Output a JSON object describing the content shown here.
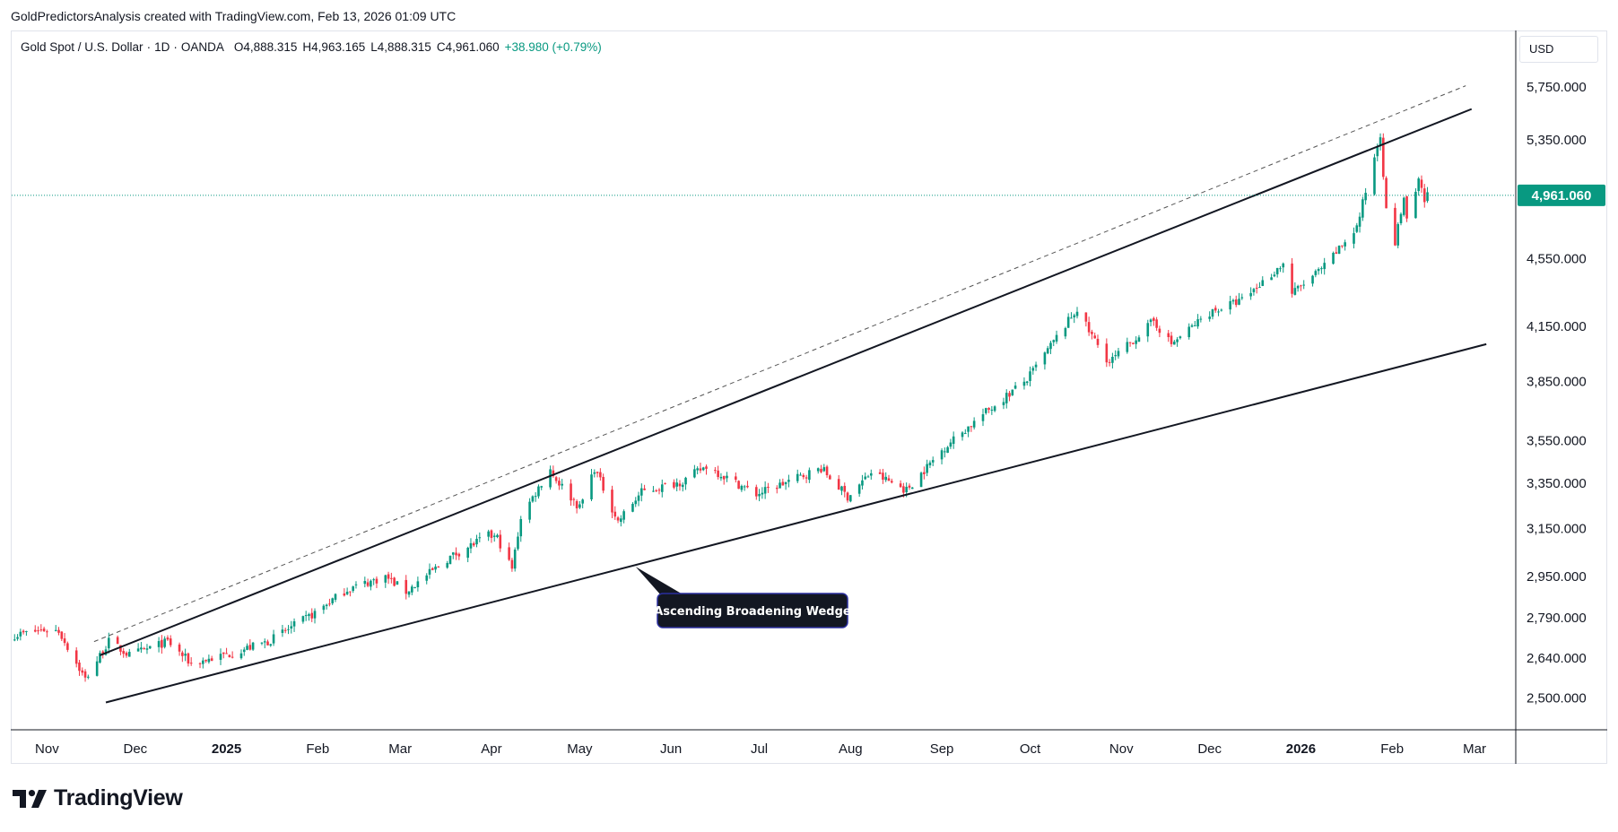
{
  "header": {
    "caption": "GoldPredictorsAnalysis created with TradingView.com, Feb 13, 2026 01:09 UTC"
  },
  "symbol": {
    "name": "Gold Spot / U.S. Dollar",
    "interval": "1D",
    "exchange": "OANDA",
    "open": "O4,888.315",
    "high": "H4,963.165",
    "low": "L4,888.315",
    "close": "C4,961.060",
    "change": "+38.980 (+0.79%)"
  },
  "currency_button": "USD",
  "brand": "TradingView",
  "colors": {
    "up": "#089981",
    "down": "#f23645",
    "price_label": "#089981",
    "annotation": "#131722"
  },
  "chart_data": {
    "type": "candlestick",
    "title": "",
    "price_axis": {
      "ticks": [
        "5,750.000",
        "5,350.000",
        "4,550.000",
        "4,150.000",
        "3,850.000",
        "3,550.000",
        "3,350.000",
        "3,150.000",
        "2,950.000",
        "2,790.000",
        "2,640.000",
        "2,500.000"
      ],
      "scale": "log",
      "range": [
        2400,
        5900
      ]
    },
    "time_axis": {
      "ticks": [
        "Nov",
        "Dec",
        "2025",
        "Feb",
        "Mar",
        "Apr",
        "May",
        "Jun",
        "Jul",
        "Aug",
        "Sep",
        "Oct",
        "Nov",
        "Dec",
        "2026",
        "Feb",
        "Mar"
      ],
      "bold": [
        "2025",
        "2026"
      ],
      "range": [
        "2024-10-20",
        "2026-03-15"
      ]
    },
    "last_price": {
      "value": 4961.06,
      "label": "4,961.060"
    },
    "close_path": [
      [
        "2024-10-20",
        2722
      ],
      [
        "2024-10-31",
        2744
      ],
      [
        "2024-11-05",
        2740
      ],
      [
        "2024-11-14",
        2565
      ],
      [
        "2024-11-22",
        2700
      ],
      [
        "2024-11-29",
        2650
      ],
      [
        "2024-12-12",
        2700
      ],
      [
        "2024-12-20",
        2620
      ],
      [
        "2025-01-02",
        2655
      ],
      [
        "2025-01-15",
        2700
      ],
      [
        "2025-01-30",
        2800
      ],
      [
        "2025-02-11",
        2900
      ],
      [
        "2025-02-24",
        2950
      ],
      [
        "2025-03-03",
        2890
      ],
      [
        "2025-03-18",
        3030
      ],
      [
        "2025-03-31",
        3120
      ],
      [
        "2025-04-03",
        3110
      ],
      [
        "2025-04-08",
        2980
      ],
      [
        "2025-04-11",
        3200
      ],
      [
        "2025-04-21",
        3420
      ],
      [
        "2025-04-22",
        3385
      ],
      [
        "2025-05-01",
        3240
      ],
      [
        "2025-05-06",
        3420
      ],
      [
        "2025-05-14",
        3180
      ],
      [
        "2025-05-22",
        3310
      ],
      [
        "2025-06-05",
        3360
      ],
      [
        "2025-06-13",
        3430
      ],
      [
        "2025-06-30",
        3300
      ],
      [
        "2025-07-22",
        3420
      ],
      [
        "2025-07-31",
        3290
      ],
      [
        "2025-08-08",
        3400
      ],
      [
        "2025-08-20",
        3320
      ],
      [
        "2025-09-02",
        3520
      ],
      [
        "2025-09-15",
        3680
      ],
      [
        "2025-09-30",
        3860
      ],
      [
        "2025-10-08",
        4040
      ],
      [
        "2025-10-17",
        4250
      ],
      [
        "2025-10-21",
        4120
      ],
      [
        "2025-10-28",
        3950
      ],
      [
        "2025-11-12",
        4180
      ],
      [
        "2025-11-18",
        4050
      ],
      [
        "2025-12-01",
        4230
      ],
      [
        "2025-12-12",
        4300
      ],
      [
        "2025-12-26",
        4520
      ],
      [
        "2025-12-29",
        4340
      ],
      [
        "2026-01-09",
        4500
      ],
      [
        "2026-01-20",
        4750
      ],
      [
        "2026-01-28",
        5400
      ],
      [
        "2026-01-30",
        4850
      ],
      [
        "2026-02-02",
        4650
      ],
      [
        "2026-02-05",
        4950
      ],
      [
        "2026-02-06",
        4780
      ],
      [
        "2026-02-10",
        5050
      ],
      [
        "2026-02-12",
        4920
      ],
      [
        "2026-02-13",
        4961
      ]
    ],
    "trendlines": [
      {
        "name": "upper",
        "from": [
          "2024-11-19",
          2650
        ],
        "to": [
          "2026-02-28",
          5580
        ],
        "style": "solid"
      },
      {
        "name": "upper-parallel",
        "from": [
          "2024-11-17",
          2700
        ],
        "to": [
          "2026-02-26",
          5760
        ],
        "style": "dashed"
      },
      {
        "name": "lower",
        "from": [
          "2024-11-21",
          2485
        ],
        "to": [
          "2026-03-05",
          4050
        ],
        "style": "solid"
      }
    ],
    "annotation": {
      "text": "Ascending Broadening Wedge",
      "anchor": [
        "2025-05-20",
        2990
      ]
    }
  }
}
